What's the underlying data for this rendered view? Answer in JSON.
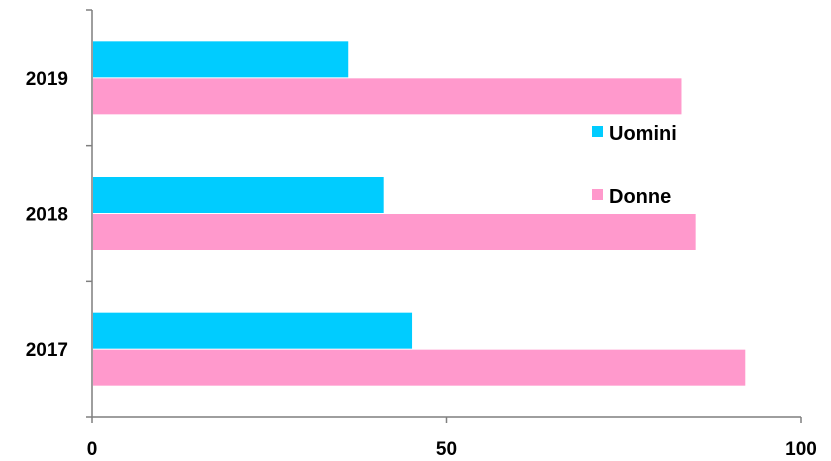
{
  "chart_data": {
    "type": "bar",
    "orientation": "horizontal",
    "categories": [
      "2019",
      "2018",
      "2017"
    ],
    "series": [
      {
        "name": "Uomini",
        "color": "#00CCFF",
        "values": [
          36,
          41,
          45
        ]
      },
      {
        "name": "Donne",
        "color": "#FF99CC",
        "values": [
          83,
          85,
          92
        ]
      }
    ],
    "xlim": [
      0,
      100
    ],
    "xticks": [
      "0",
      "50",
      "100"
    ],
    "grid": false,
    "legend_position": "right"
  }
}
